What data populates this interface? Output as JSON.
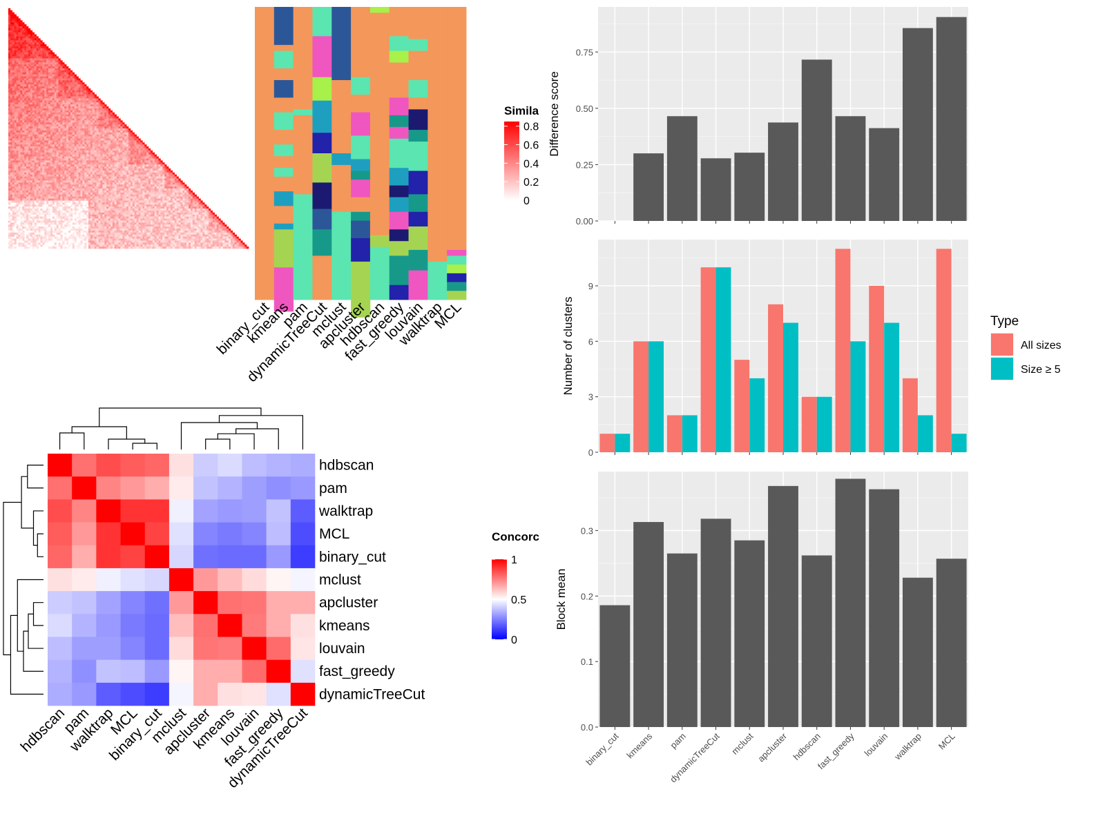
{
  "chart_data": [
    {
      "type": "heatmap",
      "panel": "similarity-heatmap",
      "legend_title": "Simila",
      "legend_ticks": [
        "0.8",
        "0.6",
        "0.4",
        "0.2",
        "0"
      ],
      "legend_tick_values": [
        0.8,
        0.6,
        0.4,
        0.2,
        0
      ],
      "colors": {
        "low": "#ffffff",
        "high": "#ff0000"
      },
      "n": 120
    },
    {
      "type": "heatmap",
      "panel": "cluster-assignment-heatmap",
      "columns": [
        "binary_cut",
        "kmeans",
        "pam",
        "dynamicTreeCut",
        "mclust",
        "apcluster",
        "hdbscan",
        "fast_greedy",
        "louvain",
        "walktrap",
        "MCL"
      ],
      "palette": [
        "#f4975a",
        "#5be5b0",
        "#f056c0",
        "#a5d453",
        "#1f9fbf",
        "#2b5798",
        "#17998a",
        "#2222aa",
        "#1c1a70",
        "#a8f04a"
      ]
    },
    {
      "type": "heatmap",
      "panel": "concordance-heatmap",
      "legend_title": "Concorc",
      "legend_ticks": [
        "1",
        "0.5",
        "0"
      ],
      "legend_tick_values": [
        1,
        0.5,
        0
      ],
      "rows": [
        "hdbscan",
        "pam",
        "walktrap",
        "MCL",
        "binary_cut",
        "mclust",
        "apcluster",
        "kmeans",
        "louvain",
        "fast_greedy",
        "dynamicTreeCut"
      ],
      "columns": [
        "hdbscan",
        "pam",
        "walktrap",
        "MCL",
        "binary_cut",
        "mclust",
        "apcluster",
        "kmeans",
        "louvain",
        "fast_greedy",
        "dynamicTreeCut"
      ],
      "values": [
        [
          1.0,
          0.78,
          0.85,
          0.82,
          0.8,
          0.56,
          0.4,
          0.43,
          0.37,
          0.35,
          0.34
        ],
        [
          0.78,
          1.0,
          0.74,
          0.7,
          0.66,
          0.54,
          0.38,
          0.35,
          0.31,
          0.28,
          0.3
        ],
        [
          0.85,
          0.74,
          1.0,
          0.9,
          0.9,
          0.47,
          0.32,
          0.3,
          0.31,
          0.38,
          0.18
        ],
        [
          0.82,
          0.7,
          0.9,
          1.0,
          0.87,
          0.44,
          0.26,
          0.24,
          0.26,
          0.37,
          0.15
        ],
        [
          0.8,
          0.66,
          0.9,
          0.87,
          1.0,
          0.42,
          0.22,
          0.21,
          0.21,
          0.3,
          0.12
        ],
        [
          0.56,
          0.54,
          0.47,
          0.44,
          0.42,
          1.0,
          0.7,
          0.63,
          0.57,
          0.52,
          0.48
        ],
        [
          0.4,
          0.38,
          0.32,
          0.26,
          0.22,
          0.7,
          1.0,
          0.78,
          0.77,
          0.66,
          0.66
        ],
        [
          0.43,
          0.35,
          0.3,
          0.24,
          0.21,
          0.63,
          0.78,
          1.0,
          0.76,
          0.66,
          0.56
        ],
        [
          0.37,
          0.31,
          0.31,
          0.26,
          0.21,
          0.57,
          0.77,
          0.76,
          1.0,
          0.79,
          0.55
        ],
        [
          0.35,
          0.28,
          0.38,
          0.37,
          0.3,
          0.52,
          0.66,
          0.66,
          0.79,
          1.0,
          0.44
        ],
        [
          0.34,
          0.3,
          0.18,
          0.15,
          0.12,
          0.48,
          0.66,
          0.56,
          0.55,
          0.44,
          1.0
        ]
      ],
      "colors": {
        "low": "#0000ff",
        "mid": "#ffffff",
        "high": "#ff0000"
      }
    },
    {
      "type": "bar",
      "panel": "difference-score",
      "categories": [
        "binary_cut",
        "kmeans",
        "pam",
        "dynamicTreeCut",
        "mclust",
        "apcluster",
        "hdbscan",
        "fast_greedy",
        "louvain",
        "walktrap",
        "MCL"
      ],
      "values": [
        0.0,
        0.3,
        0.465,
        0.278,
        0.303,
        0.437,
        0.716,
        0.465,
        0.412,
        0.856,
        0.905
      ],
      "ylabel": "Difference score",
      "ylim": [
        0,
        0.95
      ],
      "yticks": [
        0.0,
        0.25,
        0.5,
        0.75
      ],
      "ytick_labels": [
        "0.00",
        "0.25",
        "0.50",
        "0.75"
      ],
      "grid": true
    },
    {
      "type": "bar",
      "panel": "number-of-clusters",
      "categories": [
        "binary_cut",
        "kmeans",
        "pam",
        "dynamicTreeCut",
        "mclust",
        "apcluster",
        "hdbscan",
        "fast_greedy",
        "louvain",
        "walktrap",
        "MCL"
      ],
      "series": [
        {
          "name": "All sizes",
          "color": "#f8766d",
          "values": [
            1,
            6,
            2,
            10,
            5,
            8,
            3,
            11,
            9,
            4,
            11
          ]
        },
        {
          "name": "Size ≥ 5",
          "color": "#00bfc4",
          "values": [
            1,
            6,
            2,
            10,
            4,
            7,
            3,
            6,
            7,
            2,
            1
          ]
        }
      ],
      "ylabel": "Number of clusters",
      "ylim": [
        0,
        11.5
      ],
      "yticks": [
        0,
        3,
        6,
        9
      ],
      "ytick_labels": [
        "0",
        "3",
        "6",
        "9"
      ],
      "legend_title": "Type",
      "legend_position": "right",
      "grid": true
    },
    {
      "type": "bar",
      "panel": "block-mean",
      "categories": [
        "binary_cut",
        "kmeans",
        "pam",
        "dynamicTreeCut",
        "mclust",
        "apcluster",
        "hdbscan",
        "fast_greedy",
        "louvain",
        "walktrap",
        "MCL"
      ],
      "values": [
        0.186,
        0.313,
        0.265,
        0.318,
        0.285,
        0.368,
        0.262,
        0.379,
        0.363,
        0.228,
        0.257
      ],
      "ylabel": "Block mean",
      "ylim": [
        0,
        0.39
      ],
      "yticks": [
        0.0,
        0.1,
        0.2,
        0.3
      ],
      "ytick_labels": [
        "0.0",
        "0.1",
        "0.2",
        "0.3"
      ],
      "grid": true
    }
  ]
}
